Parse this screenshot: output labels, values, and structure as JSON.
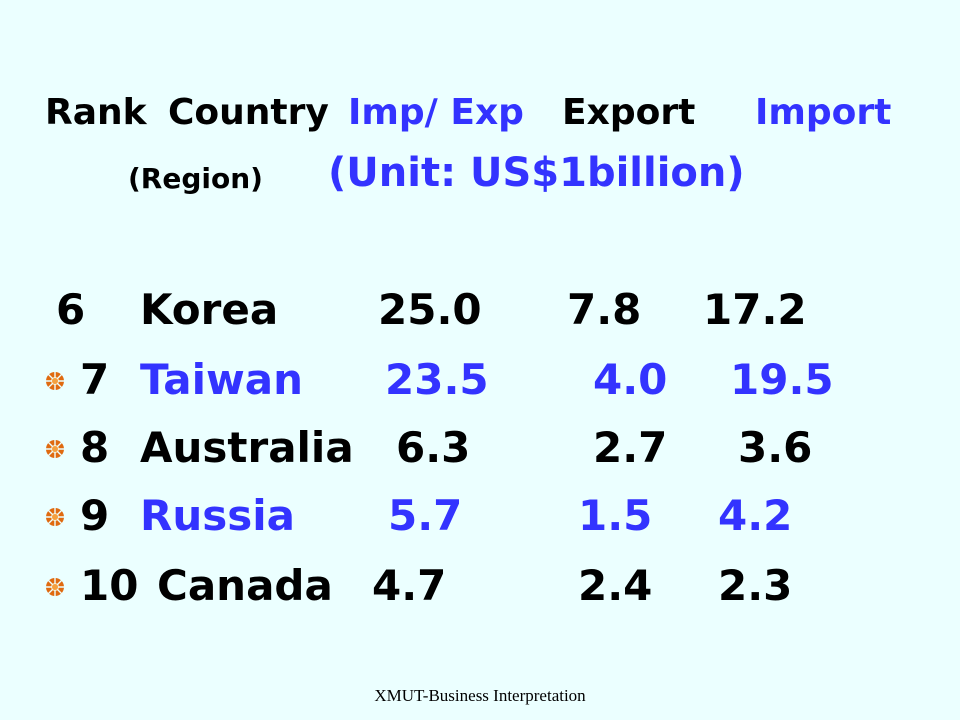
{
  "header": {
    "rank": "Rank",
    "country": "Country",
    "imp_exp": "Imp/ Exp",
    "export": "Export",
    "import": "Import",
    "region": "(Region)",
    "unit": "(Unit: US$1billion)"
  },
  "rows": [
    {
      "rank": "6",
      "country": "Korea",
      "total": "25.0",
      "export": "7.8",
      "import": "17.2"
    },
    {
      "rank": "7",
      "country": "Taiwan",
      "total": "23.5",
      "export": "4.0",
      "import": "19.5"
    },
    {
      "rank": "8",
      "country": "Australia",
      "total": "6.3",
      "export": "2.7",
      "import": "3.6"
    },
    {
      "rank": "9",
      "country": "Russia",
      "total": "5.7",
      "export": "1.5",
      "import": "4.2"
    },
    {
      "rank": "10",
      "country": "Canada",
      "total": "4.7",
      "export": "2.4",
      "import": "2.3"
    }
  ],
  "footer": "XMUT-Business Interpretation",
  "colors": {
    "background": "#ebffff",
    "blue": "#3333ff",
    "black": "#000000",
    "bullet": "#e06a10"
  },
  "icons": {
    "bullet": "gear-bullet-icon"
  }
}
